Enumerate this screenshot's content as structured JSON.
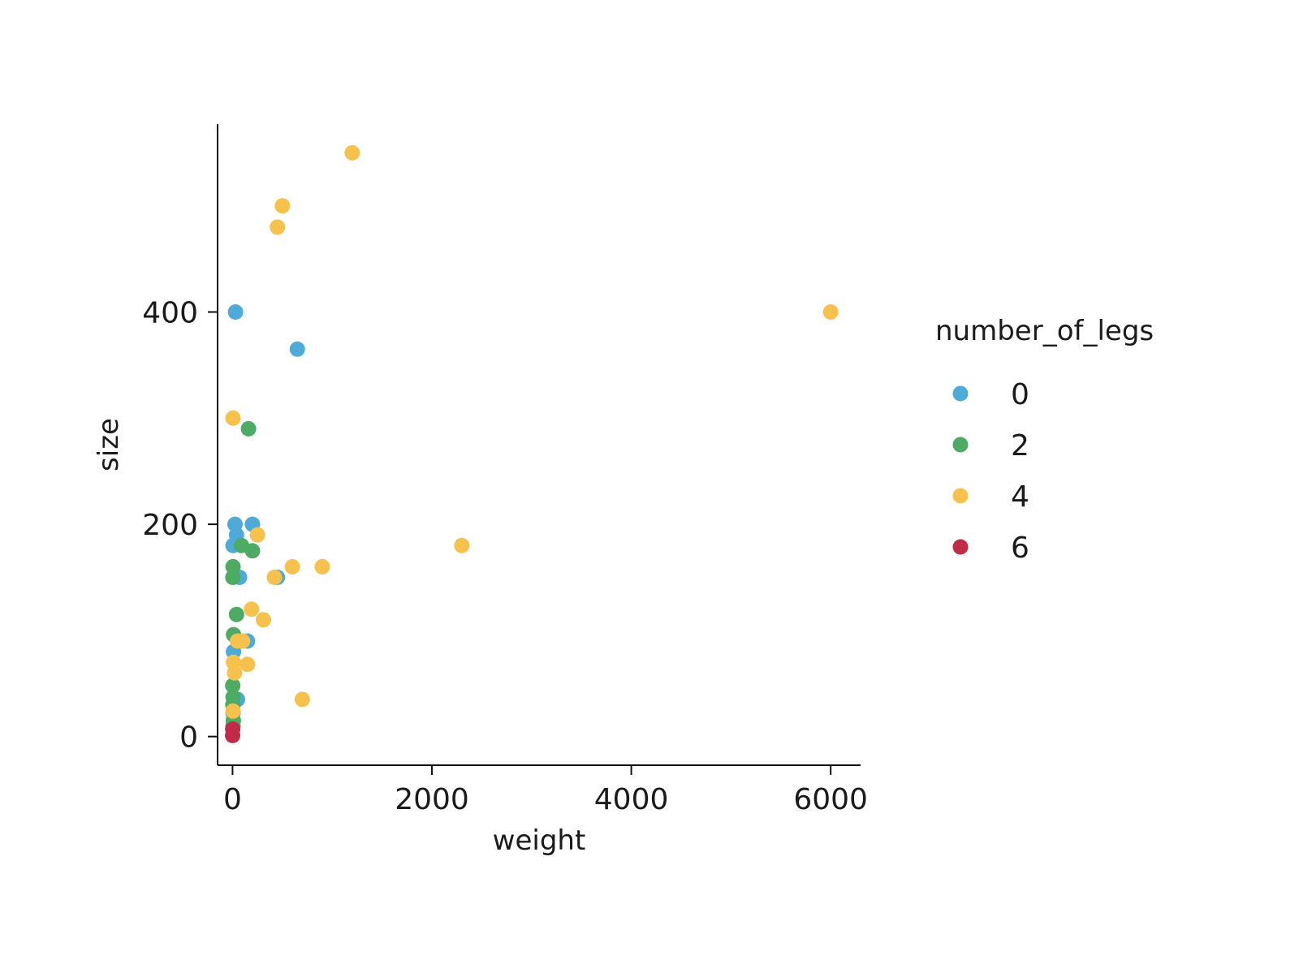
{
  "chart_data": {
    "type": "scatter",
    "xlabel": "weight",
    "ylabel": "size",
    "xlim": [
      -150,
      6300
    ],
    "ylim": [
      -27,
      577
    ],
    "x_ticks": [
      0,
      2000,
      4000,
      6000
    ],
    "y_ticks": [
      0,
      200,
      400
    ],
    "grid": false,
    "legend": {
      "title": "number_of_legs",
      "placement": "right"
    },
    "series": [
      {
        "name": "0",
        "color": "#4eaad6",
        "points": [
          {
            "x": 30,
            "y": 400
          },
          {
            "x": 650,
            "y": 365
          },
          {
            "x": 25,
            "y": 200
          },
          {
            "x": 200,
            "y": 200
          },
          {
            "x": 40,
            "y": 190
          },
          {
            "x": 5,
            "y": 180
          },
          {
            "x": 70,
            "y": 150
          },
          {
            "x": 450,
            "y": 150
          },
          {
            "x": 150,
            "y": 90
          },
          {
            "x": 10,
            "y": 80
          },
          {
            "x": 50,
            "y": 35
          },
          {
            "x": 5,
            "y": 22
          }
        ]
      },
      {
        "name": "2",
        "color": "#4dab63",
        "points": [
          {
            "x": 160,
            "y": 290
          },
          {
            "x": 90,
            "y": 180
          },
          {
            "x": 200,
            "y": 175
          },
          {
            "x": 5,
            "y": 160
          },
          {
            "x": 3,
            "y": 150
          },
          {
            "x": 40,
            "y": 115
          },
          {
            "x": 10,
            "y": 96
          },
          {
            "x": 2,
            "y": 48
          },
          {
            "x": 5,
            "y": 37
          },
          {
            "x": 3,
            "y": 30
          },
          {
            "x": 8,
            "y": 15
          },
          {
            "x": 5,
            "y": 10
          }
        ]
      },
      {
        "name": "4",
        "color": "#f6c24d",
        "points": [
          {
            "x": 1200,
            "y": 550
          },
          {
            "x": 500,
            "y": 500
          },
          {
            "x": 450,
            "y": 480
          },
          {
            "x": 6000,
            "y": 400
          },
          {
            "x": 5,
            "y": 300
          },
          {
            "x": 250,
            "y": 190
          },
          {
            "x": 2300,
            "y": 180
          },
          {
            "x": 600,
            "y": 160
          },
          {
            "x": 900,
            "y": 160
          },
          {
            "x": 420,
            "y": 150
          },
          {
            "x": 190,
            "y": 120
          },
          {
            "x": 310,
            "y": 110
          },
          {
            "x": 50,
            "y": 90
          },
          {
            "x": 100,
            "y": 90
          },
          {
            "x": 150,
            "y": 68
          },
          {
            "x": 10,
            "y": 70
          },
          {
            "x": 20,
            "y": 60
          },
          {
            "x": 700,
            "y": 35
          },
          {
            "x": 5,
            "y": 24
          }
        ]
      },
      {
        "name": "6",
        "color": "#c12b47",
        "points": [
          {
            "x": 1,
            "y": 1
          },
          {
            "x": 2,
            "y": 7
          }
        ]
      }
    ]
  }
}
